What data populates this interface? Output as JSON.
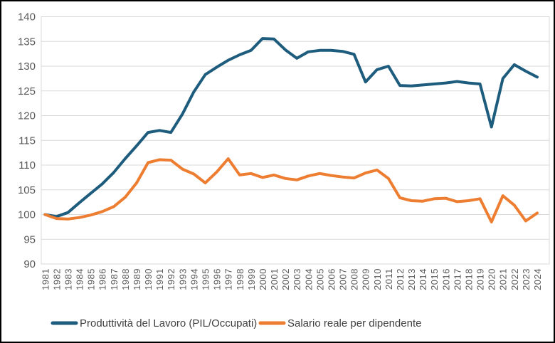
{
  "chart_data": {
    "type": "line",
    "title": "",
    "xlabel": "",
    "ylabel": "",
    "x": [
      1981,
      1982,
      1983,
      1984,
      1985,
      1986,
      1987,
      1988,
      1989,
      1990,
      1991,
      1992,
      1993,
      1994,
      1995,
      1996,
      1997,
      1998,
      1999,
      2000,
      2001,
      2002,
      2003,
      2004,
      2005,
      2006,
      2007,
      2008,
      2009,
      2010,
      2011,
      2012,
      2013,
      2014,
      2015,
      2016,
      2017,
      2018,
      2019,
      2020,
      2021,
      2022,
      2023,
      2024
    ],
    "series": [
      {
        "name": "Produttività del Lavoro (PIL/Occupati)",
        "color": "#1E5C7D",
        "values": [
          100,
          99.6,
          100.4,
          102.4,
          104.3,
          106.2,
          108.5,
          111.3,
          113.9,
          116.6,
          117.0,
          116.6,
          120.3,
          124.8,
          128.3,
          129.8,
          131.2,
          132.3,
          133.2,
          135.6,
          135.5,
          133.3,
          131.6,
          132.9,
          133.2,
          133.2,
          133.0,
          132.4,
          126.8,
          129.3,
          130.0,
          126.1,
          126.0,
          126.2,
          126.4,
          126.6,
          126.9,
          126.6,
          126.4,
          117.7,
          127.5,
          130.3,
          129.0,
          127.8
        ]
      },
      {
        "name": "Salario reale per dipendente",
        "color": "#ED7D31",
        "values": [
          100,
          99.2,
          99.1,
          99.4,
          99.9,
          100.6,
          101.6,
          103.5,
          106.4,
          110.5,
          111.1,
          111.0,
          109.2,
          108.2,
          106.4,
          108.6,
          111.3,
          108.0,
          108.3,
          107.5,
          108.0,
          107.3,
          107.0,
          107.8,
          108.3,
          107.9,
          107.6,
          107.4,
          108.4,
          109.0,
          107.3,
          103.4,
          102.8,
          102.7,
          103.2,
          103.3,
          102.6,
          102.8,
          103.2,
          98.5,
          103.8,
          101.9,
          98.7,
          100.3
        ]
      }
    ],
    "ylim": [
      90,
      140
    ],
    "yticks": [
      90,
      95,
      100,
      105,
      110,
      115,
      120,
      125,
      130,
      135,
      140
    ],
    "grid": "horizontal",
    "legend_position": "bottom",
    "colors": {
      "gridline": "#D9D9D9",
      "plot_border": "#D9D9D9",
      "axis_label": "#595959",
      "legend_text": "#404040",
      "background": "#FFFFFF",
      "frame_border": "#000000"
    }
  }
}
